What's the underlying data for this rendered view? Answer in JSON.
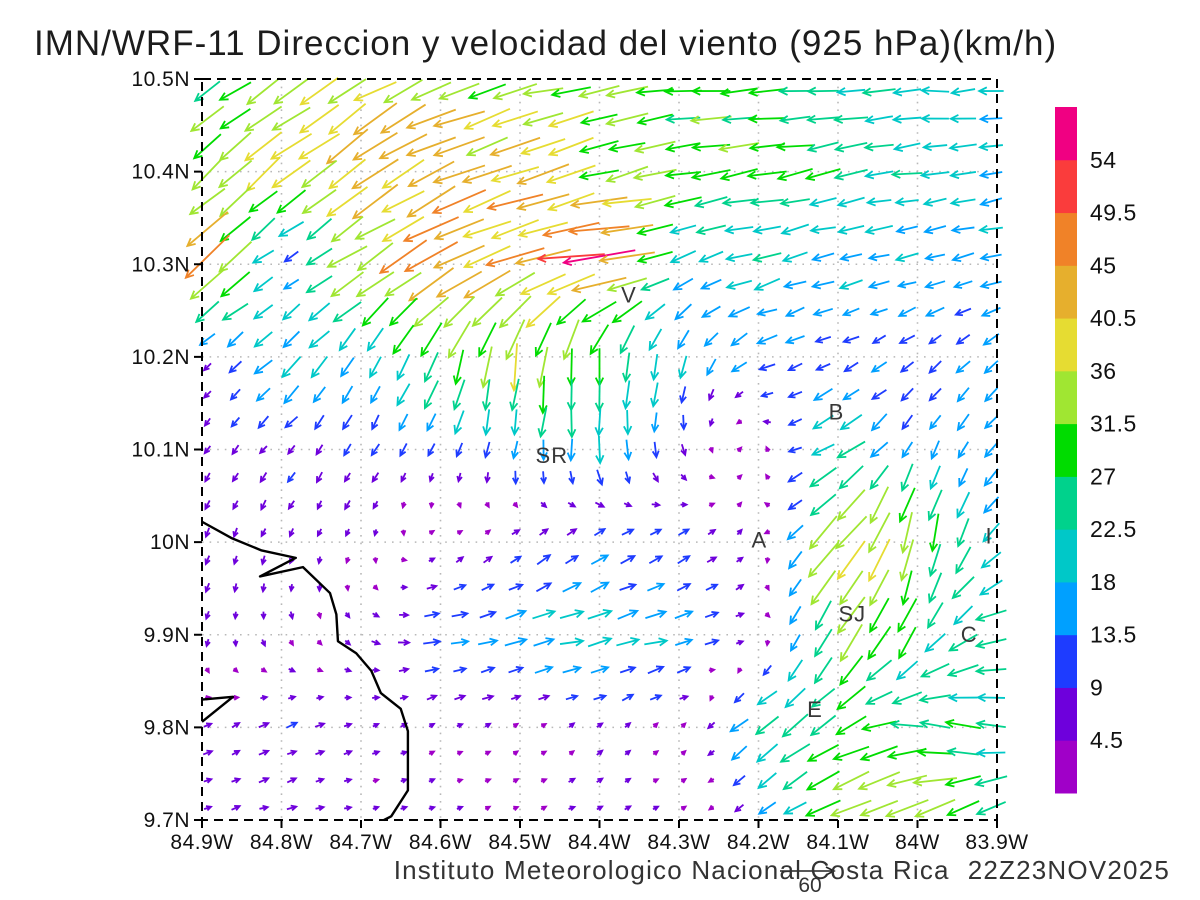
{
  "title": "IMN/WRF-11 Direccion y velocidad del viento (925 hPa)(km/h)",
  "footer": {
    "institute": "Instituto Meteorologico Nacional Costa Rica",
    "timestamp": "22Z23NOV2025"
  },
  "chart_data": {
    "type": "vector_field",
    "title": "IMN/WRF-11 Direccion y velocidad del viento (925 hPa)(km/h)",
    "units": "km/h",
    "grid": true,
    "x_axis": {
      "range": [
        -84.9,
        -83.9
      ],
      "tick_values": [
        -84.9,
        -84.8,
        -84.7,
        -84.6,
        -84.5,
        -84.4,
        -84.3,
        -84.2,
        -84.1,
        -84.0,
        -83.9
      ],
      "tick_labels": [
        "84.9W",
        "84.8W",
        "84.7W",
        "84.6W",
        "84.5W",
        "84.4W",
        "84.3W",
        "84.2W",
        "84.1W",
        "84W",
        "83.9W"
      ]
    },
    "y_axis": {
      "range": [
        9.7,
        10.5
      ],
      "tick_values": [
        10.5,
        10.4,
        10.3,
        10.2,
        10.1,
        10.0,
        9.9,
        9.8,
        9.7
      ],
      "tick_labels": [
        "10.5N",
        "10.4N",
        "10.3N",
        "10.2N",
        "10.1N",
        "10N",
        "9.9N",
        "9.8N",
        "9.7N"
      ]
    },
    "colorbar": {
      "levels": [
        4.5,
        9,
        13.5,
        18,
        22.5,
        27,
        31.5,
        36,
        40.5,
        45,
        49.5,
        54
      ],
      "colors": [
        "#A000C8",
        "#6E00DC",
        "#1E3CFF",
        "#00A0FF",
        "#00C8C8",
        "#00D28C",
        "#00DC00",
        "#A0E632",
        "#E6DC32",
        "#E6AF2D",
        "#F08228",
        "#FA3C3C",
        "#F00082"
      ]
    },
    "reference_vector": {
      "label": "60"
    },
    "station_labels": [
      {
        "text": "V",
        "lon": -84.363,
        "lat": 10.266
      },
      {
        "text": "B",
        "lon": -84.102,
        "lat": 10.14
      },
      {
        "text": "SR",
        "lon": -84.46,
        "lat": 10.093
      },
      {
        "text": "A",
        "lon": -84.199,
        "lat": 10.002
      },
      {
        "text": "I",
        "lon": -83.91,
        "lat": 10.006
      },
      {
        "text": "SJ",
        "lon": -84.082,
        "lat": 9.922
      },
      {
        "text": "C",
        "lon": -83.935,
        "lat": 9.9
      },
      {
        "text": "E",
        "lon": -84.129,
        "lat": 9.819
      }
    ],
    "wind_grid": {
      "lons": [
        -84.9,
        -84.8,
        -84.7,
        -84.6,
        -84.5,
        -84.4,
        -84.3,
        -84.2,
        -84.1,
        -84.0,
        -83.9
      ],
      "lats": [
        10.5,
        10.4,
        10.3,
        10.2,
        10.1,
        10.0,
        9.9,
        9.8,
        9.7
      ],
      "u": [
        [
          -24,
          -26,
          -30,
          -34,
          -32,
          -30,
          -29,
          -27,
          -25,
          -22,
          -20
        ],
        [
          -25,
          -28,
          -34,
          -38,
          -38,
          -34,
          -31,
          -28,
          -25,
          -21,
          -18
        ],
        [
          -38,
          -8,
          -30,
          -40,
          -42,
          -54,
          -17,
          -21,
          -18,
          -16,
          -16
        ],
        [
          -6,
          -16,
          -10,
          -12,
          -6,
          -2,
          -6,
          -13,
          -11,
          -9,
          -12
        ],
        [
          -4,
          -6,
          -5,
          -4,
          -2,
          0,
          2,
          1,
          -22,
          -6,
          -9
        ],
        [
          -2,
          -3,
          -2,
          3,
          6,
          10,
          8,
          3,
          -28,
          -6,
          -12
        ],
        [
          -2,
          2,
          4,
          14,
          18,
          20,
          16,
          4,
          -16,
          -12,
          -26
        ],
        [
          6,
          8,
          5,
          4,
          3,
          4,
          3,
          -20,
          -22,
          -28,
          -24
        ],
        [
          6,
          7,
          5,
          4,
          4,
          5,
          4,
          -10,
          -28,
          -38,
          -22
        ]
      ],
      "v": [
        [
          -14,
          -16,
          -18,
          -12,
          -8,
          -5,
          -3,
          -2,
          -2,
          -1,
          -1
        ],
        [
          -22,
          -24,
          -24,
          -18,
          -13,
          -9,
          -6,
          -5,
          -4,
          -3,
          -3
        ],
        [
          -30,
          -4,
          -20,
          -20,
          -12,
          -6,
          -6,
          -6,
          -5,
          -4,
          -4
        ],
        [
          -5,
          -14,
          -16,
          -30,
          -36,
          -30,
          -17,
          -6,
          -5,
          -7,
          -9
        ],
        [
          -6,
          -7,
          -8,
          -10,
          -16,
          -20,
          -9,
          5,
          -13,
          -14,
          -11
        ],
        [
          -7,
          -6,
          -5,
          3,
          6,
          8,
          6,
          3,
          -30,
          -34,
          -12
        ],
        [
          -6,
          -5,
          -3,
          3,
          4,
          5,
          4,
          2,
          -30,
          -22,
          -6
        ],
        [
          3,
          4,
          2,
          2,
          2,
          3,
          3,
          -16,
          -14,
          4,
          6
        ],
        [
          2,
          2,
          1,
          1,
          2,
          2,
          2,
          -6,
          -14,
          -15,
          -11
        ]
      ]
    },
    "coastline": {
      "main": [
        [
          -84.9,
          10.022
        ],
        [
          -84.862,
          10.004
        ],
        [
          -84.825,
          9.991
        ],
        [
          -84.782,
          9.983
        ],
        [
          -84.827,
          9.963
        ],
        [
          -84.773,
          9.973
        ],
        [
          -84.739,
          9.945
        ],
        [
          -84.731,
          9.922
        ],
        [
          -84.729,
          9.893
        ],
        [
          -84.706,
          9.88
        ],
        [
          -84.687,
          9.861
        ],
        [
          -84.675,
          9.837
        ],
        [
          -84.65,
          9.82
        ],
        [
          -84.641,
          9.796
        ],
        [
          -84.641,
          9.732
        ],
        [
          -84.662,
          9.704
        ],
        [
          -84.671,
          9.7
        ]
      ],
      "wedge": [
        [
          -84.9,
          9.83
        ],
        [
          -84.861,
          9.833
        ],
        [
          -84.9,
          9.806
        ]
      ]
    }
  }
}
